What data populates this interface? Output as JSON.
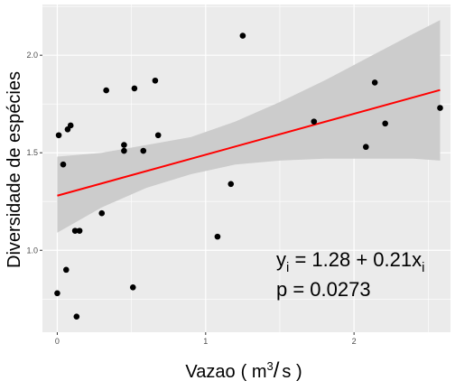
{
  "chart_data": {
    "type": "scatter",
    "xlabel": "Vazao",
    "xlabel_unit": {
      "open": "( m",
      "power": "3",
      "slash": "/",
      "close": "s )"
    },
    "ylabel": "Diversidade de espécies",
    "xlim": [
      -0.1,
      2.65
    ],
    "ylim": [
      0.58,
      2.26
    ],
    "x_ticks": [
      {
        "value": 0,
        "label": "0"
      },
      {
        "value": 1,
        "label": "1"
      },
      {
        "value": 2,
        "label": "2"
      }
    ],
    "y_ticks": [
      {
        "value": 1.0,
        "label": "1.0"
      },
      {
        "value": 1.5,
        "label": "1.5"
      },
      {
        "value": 2.0,
        "label": "2.0"
      }
    ],
    "grid": true,
    "points": [
      {
        "x": 0.0,
        "y": 0.78
      },
      {
        "x": 0.01,
        "y": 1.59
      },
      {
        "x": 0.04,
        "y": 1.44
      },
      {
        "x": 0.06,
        "y": 0.9
      },
      {
        "x": 0.07,
        "y": 1.62
      },
      {
        "x": 0.09,
        "y": 1.64
      },
      {
        "x": 0.12,
        "y": 1.1
      },
      {
        "x": 0.13,
        "y": 0.66
      },
      {
        "x": 0.15,
        "y": 1.1
      },
      {
        "x": 0.3,
        "y": 1.19
      },
      {
        "x": 0.33,
        "y": 1.82
      },
      {
        "x": 0.45,
        "y": 1.54
      },
      {
        "x": 0.45,
        "y": 1.51
      },
      {
        "x": 0.51,
        "y": 0.81
      },
      {
        "x": 0.52,
        "y": 1.83
      },
      {
        "x": 0.58,
        "y": 1.51
      },
      {
        "x": 0.66,
        "y": 1.87
      },
      {
        "x": 0.68,
        "y": 1.59
      },
      {
        "x": 1.08,
        "y": 1.07
      },
      {
        "x": 1.17,
        "y": 1.34
      },
      {
        "x": 1.25,
        "y": 2.1
      },
      {
        "x": 1.73,
        "y": 1.66
      },
      {
        "x": 2.08,
        "y": 1.53
      },
      {
        "x": 2.14,
        "y": 1.86
      },
      {
        "x": 2.21,
        "y": 1.65
      },
      {
        "x": 2.58,
        "y": 1.73
      }
    ],
    "fit": {
      "intercept": 1.28,
      "slope": 0.21,
      "color": "#ff0000"
    },
    "confidence_band": [
      {
        "x": 0.0,
        "lo": 1.09,
        "hi": 1.48
      },
      {
        "x": 0.3,
        "lo": 1.22,
        "hi": 1.5
      },
      {
        "x": 0.6,
        "lo": 1.32,
        "hi": 1.54
      },
      {
        "x": 0.9,
        "lo": 1.39,
        "hi": 1.58
      },
      {
        "x": 1.2,
        "lo": 1.44,
        "hi": 1.66
      },
      {
        "x": 1.5,
        "lo": 1.46,
        "hi": 1.76
      },
      {
        "x": 1.8,
        "lo": 1.47,
        "hi": 1.87
      },
      {
        "x": 2.1,
        "lo": 1.47,
        "hi": 1.99
      },
      {
        "x": 2.4,
        "lo": 1.47,
        "hi": 2.11
      },
      {
        "x": 2.58,
        "lo": 1.46,
        "hi": 2.18
      }
    ],
    "colors": {
      "panel": "#ebebeb",
      "grid": "#ffffff",
      "band": "#cccccc",
      "point": "#000000",
      "fit_line": "#ff0000"
    },
    "annotation": {
      "line1": {
        "y": "y",
        "y_sub": "i",
        "eq": " = 1.28 + 0.21x",
        "x_sub": "i"
      },
      "line2": "p = 0.0273"
    }
  }
}
